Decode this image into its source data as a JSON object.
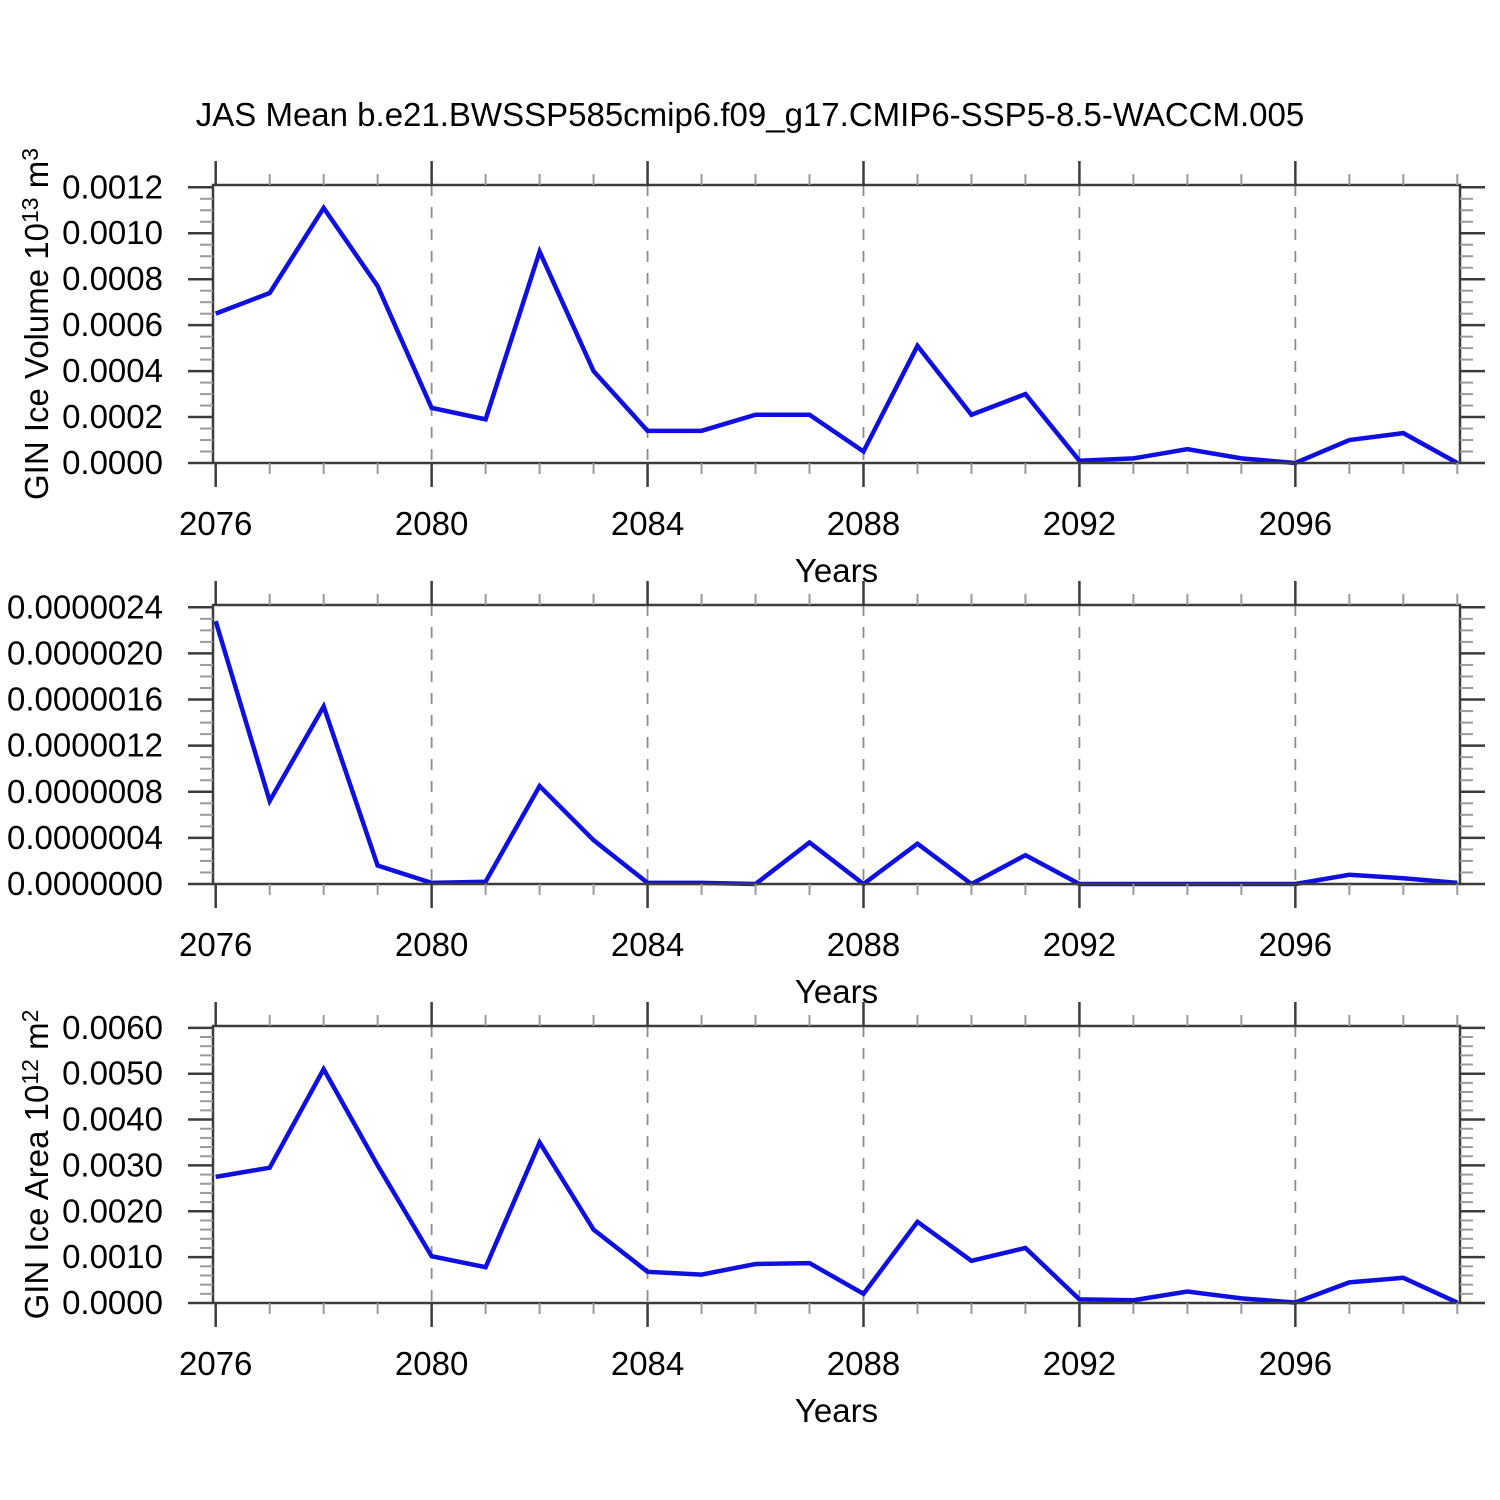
{
  "title": "JAS Mean b.e21.BWSSP585cmip6.f09_g17.CMIP6-SSP5-8.5-WACCM.005",
  "colors": {
    "line": "#0f0fe0",
    "spine": "#3c3c3c",
    "minor_tick": "#9a9a9a",
    "grid": "#8c8c8c",
    "text": "#000000",
    "background": "#ffffff"
  },
  "x_axis": {
    "label": "Years",
    "range": [
      2075.95,
      2099.05
    ],
    "tick_years": [
      2076,
      2080,
      2084,
      2088,
      2092,
      2096
    ],
    "tick_labels": [
      "2076",
      "2080",
      "2084",
      "2088",
      "2092",
      "2096"
    ],
    "grid_years": [
      2080,
      2084,
      2088,
      2092,
      2096
    ],
    "minor_tick_every_year": true,
    "years": [
      2076,
      2077,
      2078,
      2079,
      2080,
      2081,
      2082,
      2083,
      2084,
      2085,
      2086,
      2087,
      2088,
      2089,
      2090,
      2091,
      2092,
      2093,
      2094,
      2095,
      2096,
      2097,
      2098,
      2099
    ]
  },
  "chart_data": [
    {
      "type": "line",
      "name": "gin-ice-volume",
      "title": "JAS Mean b.e21.BWSSP585cmip6.f09_g17.CMIP6-SSP5-8.5-WACCM.005",
      "xlabel": "Years",
      "ylabel": "GIN Ice Volume 10¹³ m³",
      "ylabel_parts": [
        {
          "t": "GIN Ice Volume 10"
        },
        {
          "t": "13",
          "sup": true
        },
        {
          "t": " m"
        },
        {
          "t": "3",
          "sup": true
        }
      ],
      "grid": "vertical-dashed",
      "legend": "none",
      "ylim": [
        0,
        0.00121
      ],
      "y_max": 0.00121,
      "y_tick_step": 0.0002,
      "y_minor_per_major": 4,
      "y_tick_labels": [
        "0.0000",
        "0.0002",
        "0.0004",
        "0.0006",
        "0.0008",
        "0.0010",
        "0.0012"
      ],
      "values": [
        0.00065,
        0.00074,
        0.00111,
        0.00077,
        0.00024,
        0.00019,
        0.00092,
        0.0004,
        0.00014,
        0.00014,
        0.00021,
        0.00021,
        5e-05,
        0.00051,
        0.00021,
        0.0003,
        1e-05,
        2e-05,
        6e-05,
        2e-05,
        0.0,
        0.0001,
        0.00013,
        0.0
      ]
    },
    {
      "type": "line",
      "name": "gin-ice-middle",
      "title": "",
      "xlabel": "Years",
      "ylabel": "",
      "ylabel_parts": null,
      "grid": "vertical-dashed",
      "legend": "none",
      "ylim": [
        0,
        2.42e-06
      ],
      "y_max": 2.42e-06,
      "y_tick_step": 4e-07,
      "y_minor_per_major": 4,
      "y_tick_labels": [
        "0.0000000",
        "0.0000004",
        "0.0000008",
        "0.0000012",
        "0.0000016",
        "0.0000020",
        "0.0000024"
      ],
      "values": [
        2.28e-06,
        7.2e-07,
        1.54e-06,
        1.6e-07,
        1e-08,
        2e-08,
        8.5e-07,
        3.8e-07,
        1e-08,
        1e-08,
        0.0,
        3.6e-07,
        0.0,
        3.5e-07,
        0.0,
        2.5e-07,
        0.0,
        0.0,
        0.0,
        0.0,
        0.0,
        8e-08,
        5e-08,
        1e-08
      ]
    },
    {
      "type": "line",
      "name": "gin-ice-area",
      "title": "",
      "xlabel": "Years",
      "ylabel": "GIN Ice Area 10¹² m²",
      "ylabel_parts": [
        {
          "t": "GIN Ice Area 10"
        },
        {
          "t": "12",
          "sup": true
        },
        {
          "t": " m"
        },
        {
          "t": "2",
          "sup": true
        }
      ],
      "grid": "vertical-dashed",
      "legend": "none",
      "ylim": [
        0,
        0.00604
      ],
      "y_max": 0.00604,
      "y_tick_step": 0.001,
      "y_minor_per_major": 5,
      "y_tick_labels": [
        "0.0000",
        "0.0010",
        "0.0020",
        "0.0030",
        "0.0040",
        "0.0050",
        "0.0060"
      ],
      "values": [
        0.00275,
        0.00295,
        0.0051,
        0.003,
        0.00102,
        0.00078,
        0.0035,
        0.0016,
        0.00068,
        0.00062,
        0.00085,
        0.00087,
        0.0002,
        0.00177,
        0.00092,
        0.0012,
        8e-05,
        6e-05,
        0.00025,
        0.0001,
        1e-05,
        0.00045,
        0.00055,
        1e-05
      ]
    }
  ]
}
